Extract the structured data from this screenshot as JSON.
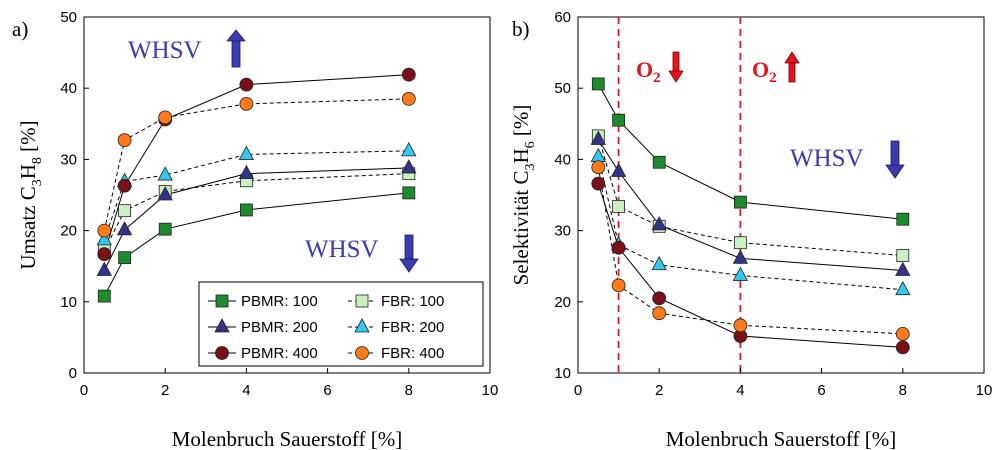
{
  "colors": {
    "pbmr100": "#1e8a2e",
    "fbr100": "#c8f0c0",
    "pbmr200": "#33338a",
    "fbr200": "#33c8f0",
    "pbmr400": "#7a1018",
    "fbr400": "#ff7a1a",
    "blue_annotation": "#3b3bb0",
    "red_annotation": "#e3141b"
  },
  "chart_data": [
    {
      "type": "line",
      "panel_label": "a)",
      "xlabel": "Molenbruch Sauerstoff [%]",
      "ylabel": "Umsatz C3H8 [%]",
      "ylabel_parts": {
        "prefix": "Umsatz C",
        "sub1": "3",
        "mid": "H",
        "sub2": "8",
        "suffix": " [%]"
      },
      "xlim": [
        0,
        10
      ],
      "ylim": [
        0,
        50
      ],
      "x_ticks": [
        0,
        2,
        4,
        6,
        8,
        10
      ],
      "y_ticks": [
        0,
        10,
        20,
        30,
        40,
        50
      ],
      "grid": false,
      "legend_position": "bottom-right",
      "x": [
        0.5,
        1,
        2,
        4,
        8
      ],
      "series": [
        {
          "name": "PBMR: 100",
          "key": "pbmr100",
          "marker": "square",
          "dashed": false,
          "values": [
            10.8,
            16.2,
            20.2,
            22.9,
            25.3
          ]
        },
        {
          "name": "FBR: 100",
          "key": "fbr100",
          "marker": "square",
          "dashed": true,
          "values": [
            17.2,
            22.8,
            25.5,
            27.0,
            28.0
          ]
        },
        {
          "name": "PBMR: 200",
          "key": "pbmr200",
          "marker": "triangle",
          "dashed": false,
          "values": [
            14.4,
            20.1,
            25.0,
            28.0,
            28.8
          ]
        },
        {
          "name": "FBR: 200",
          "key": "fbr200",
          "marker": "triangle",
          "dashed": true,
          "values": [
            18.7,
            26.9,
            27.8,
            30.7,
            31.2
          ]
        },
        {
          "name": "PBMR: 400",
          "key": "pbmr400",
          "marker": "circle",
          "dashed": false,
          "values": [
            16.7,
            26.3,
            35.6,
            40.5,
            41.9
          ]
        },
        {
          "name": "FBR: 400",
          "key": "fbr400",
          "marker": "circle",
          "dashed": true,
          "values": [
            20.0,
            32.7,
            35.9,
            37.8,
            38.5
          ]
        }
      ],
      "annotations": [
        {
          "text": "WHSV",
          "arrow": "up",
          "color": "blue_annotation"
        },
        {
          "text": "WHSV",
          "arrow": "down",
          "color": "blue_annotation"
        }
      ]
    },
    {
      "type": "line",
      "panel_label": "b)",
      "xlabel": "Molenbruch Sauerstoff [%]",
      "ylabel": "Selektivität C3H6 [%]",
      "ylabel_parts": {
        "prefix": "Selektivität C",
        "sub1": "3",
        "mid": "H",
        "sub2": "6",
        "suffix": " [%]"
      },
      "xlim": [
        0,
        10
      ],
      "ylim": [
        10,
        60
      ],
      "x_ticks": [
        0,
        2,
        4,
        6,
        8,
        10
      ],
      "y_ticks": [
        10,
        20,
        30,
        40,
        50,
        60
      ],
      "grid": false,
      "x": [
        0.5,
        1,
        2,
        4,
        8
      ],
      "vertical_lines": [
        1,
        4
      ],
      "series": [
        {
          "name": "PBMR: 100",
          "key": "pbmr100",
          "marker": "square",
          "dashed": false,
          "values": [
            50.6,
            45.5,
            39.6,
            34.0,
            31.6
          ]
        },
        {
          "name": "FBR: 100",
          "key": "fbr100",
          "marker": "square",
          "dashed": true,
          "values": [
            43.3,
            33.4,
            30.6,
            28.3,
            26.5
          ]
        },
        {
          "name": "PBMR: 200",
          "key": "pbmr200",
          "marker": "triangle",
          "dashed": false,
          "values": [
            42.8,
            38.3,
            30.8,
            26.1,
            24.4
          ]
        },
        {
          "name": "FBR: 200",
          "key": "fbr200",
          "marker": "triangle",
          "dashed": true,
          "values": [
            40.4,
            28.0,
            25.2,
            23.7,
            21.7
          ]
        },
        {
          "name": "PBMR: 400",
          "key": "pbmr400",
          "marker": "circle",
          "dashed": false,
          "values": [
            36.6,
            27.6,
            20.5,
            15.2,
            13.6
          ]
        },
        {
          "name": "FBR: 400",
          "key": "fbr400",
          "marker": "circle",
          "dashed": true,
          "values": [
            38.9,
            22.3,
            18.4,
            16.7,
            15.5
          ]
        }
      ],
      "annotations": [
        {
          "text": "O2",
          "arrow": "down",
          "color": "red_annotation"
        },
        {
          "text": "O2",
          "arrow": "up",
          "color": "red_annotation"
        },
        {
          "text": "WHSV",
          "arrow": "down",
          "color": "blue_annotation"
        }
      ]
    }
  ]
}
